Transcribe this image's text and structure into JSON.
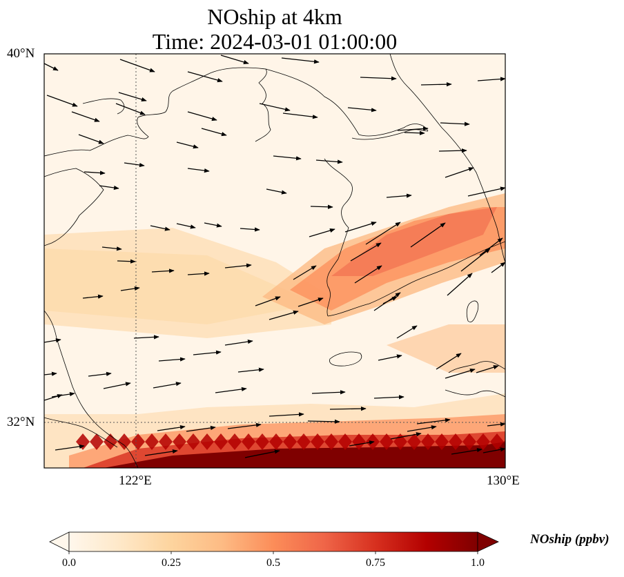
{
  "title": {
    "line1": "NOship at 4km",
    "line2": "Time: 2024-03-01 01:00:00"
  },
  "map": {
    "extent_lon": [
      118,
      130
    ],
    "extent_lat": [
      31.3,
      40
    ],
    "gridlines_lon": [
      122
    ],
    "gridlines_lat": [
      32
    ],
    "lon_ticks": [
      {
        "value": 122,
        "label": "122°E"
      },
      {
        "value": 130,
        "label": "130°E"
      }
    ],
    "lat_ticks": [
      {
        "value": 40,
        "label": "40°N"
      },
      {
        "value": 32,
        "label": "32°N"
      }
    ],
    "field_colormap": "OrRd",
    "field_range": [
      0,
      1.0
    ],
    "wind_vectors": "black arrows, mostly westerly/west-southwesterly flow"
  },
  "colorbar": {
    "label": "NOship (ppbv)",
    "ticks": [
      "0.0",
      "0.25",
      "0.5",
      "0.75",
      "1.0"
    ],
    "colors": [
      "#fff7ec",
      "#fee8c8",
      "#fdd49e",
      "#fdbb84",
      "#fc8d59",
      "#ef6548",
      "#d7301f",
      "#b30000",
      "#7f0000"
    ],
    "extend": "both"
  }
}
